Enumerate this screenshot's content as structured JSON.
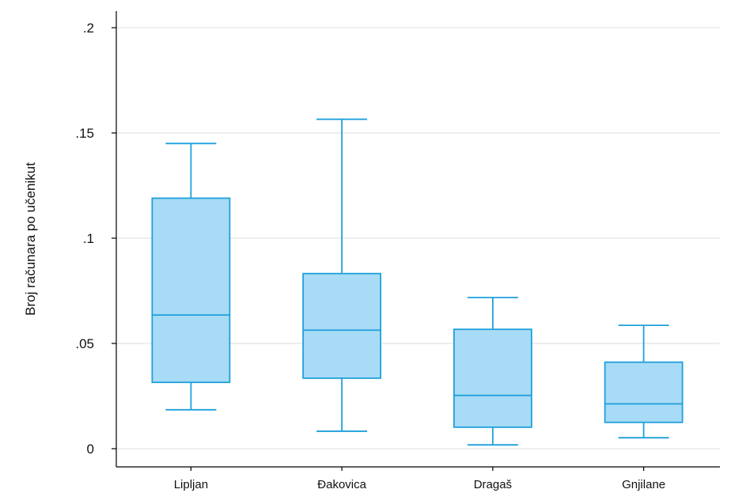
{
  "chart_data": {
    "type": "boxplot",
    "title": "",
    "xlabel": "",
    "ylabel": "Broj računara po učenikut",
    "ylim": [
      0,
      0.22
    ],
    "y_ticks": [
      {
        "value": 0,
        "label": "0"
      },
      {
        "value": 0.05,
        "label": ".05"
      },
      {
        "value": 0.1,
        "label": ".1"
      },
      {
        "value": 0.15,
        "label": ".15"
      },
      {
        "value": 0.2,
        "label": ".2"
      }
    ],
    "grid": true,
    "categories": [
      "Lipljan",
      "Đakovica",
      "Dragaš",
      "Gnjilane"
    ],
    "boxes": [
      {
        "category": "Lipljan",
        "whisker_low": 0.0185,
        "q1": 0.0315,
        "median": 0.0635,
        "q3": 0.119,
        "whisker_high": 0.145
      },
      {
        "category": "Đakovica",
        "whisker_low": 0.0083,
        "q1": 0.0335,
        "median": 0.0563,
        "q3": 0.0832,
        "whisker_high": 0.1565
      },
      {
        "category": "Dragaš",
        "whisker_low": 0.0018,
        "q1": 0.0102,
        "median": 0.0253,
        "q3": 0.0567,
        "whisker_high": 0.0718
      },
      {
        "category": "Gnjilane",
        "whisker_low": 0.0052,
        "q1": 0.0125,
        "median": 0.0213,
        "q3": 0.0411,
        "whisker_high": 0.0586
      }
    ],
    "colors": {
      "box_fill": "#a8dbf5",
      "box_stroke": "#1ea0dc",
      "grid": "#dcdcdc",
      "axis": "#000000"
    }
  }
}
